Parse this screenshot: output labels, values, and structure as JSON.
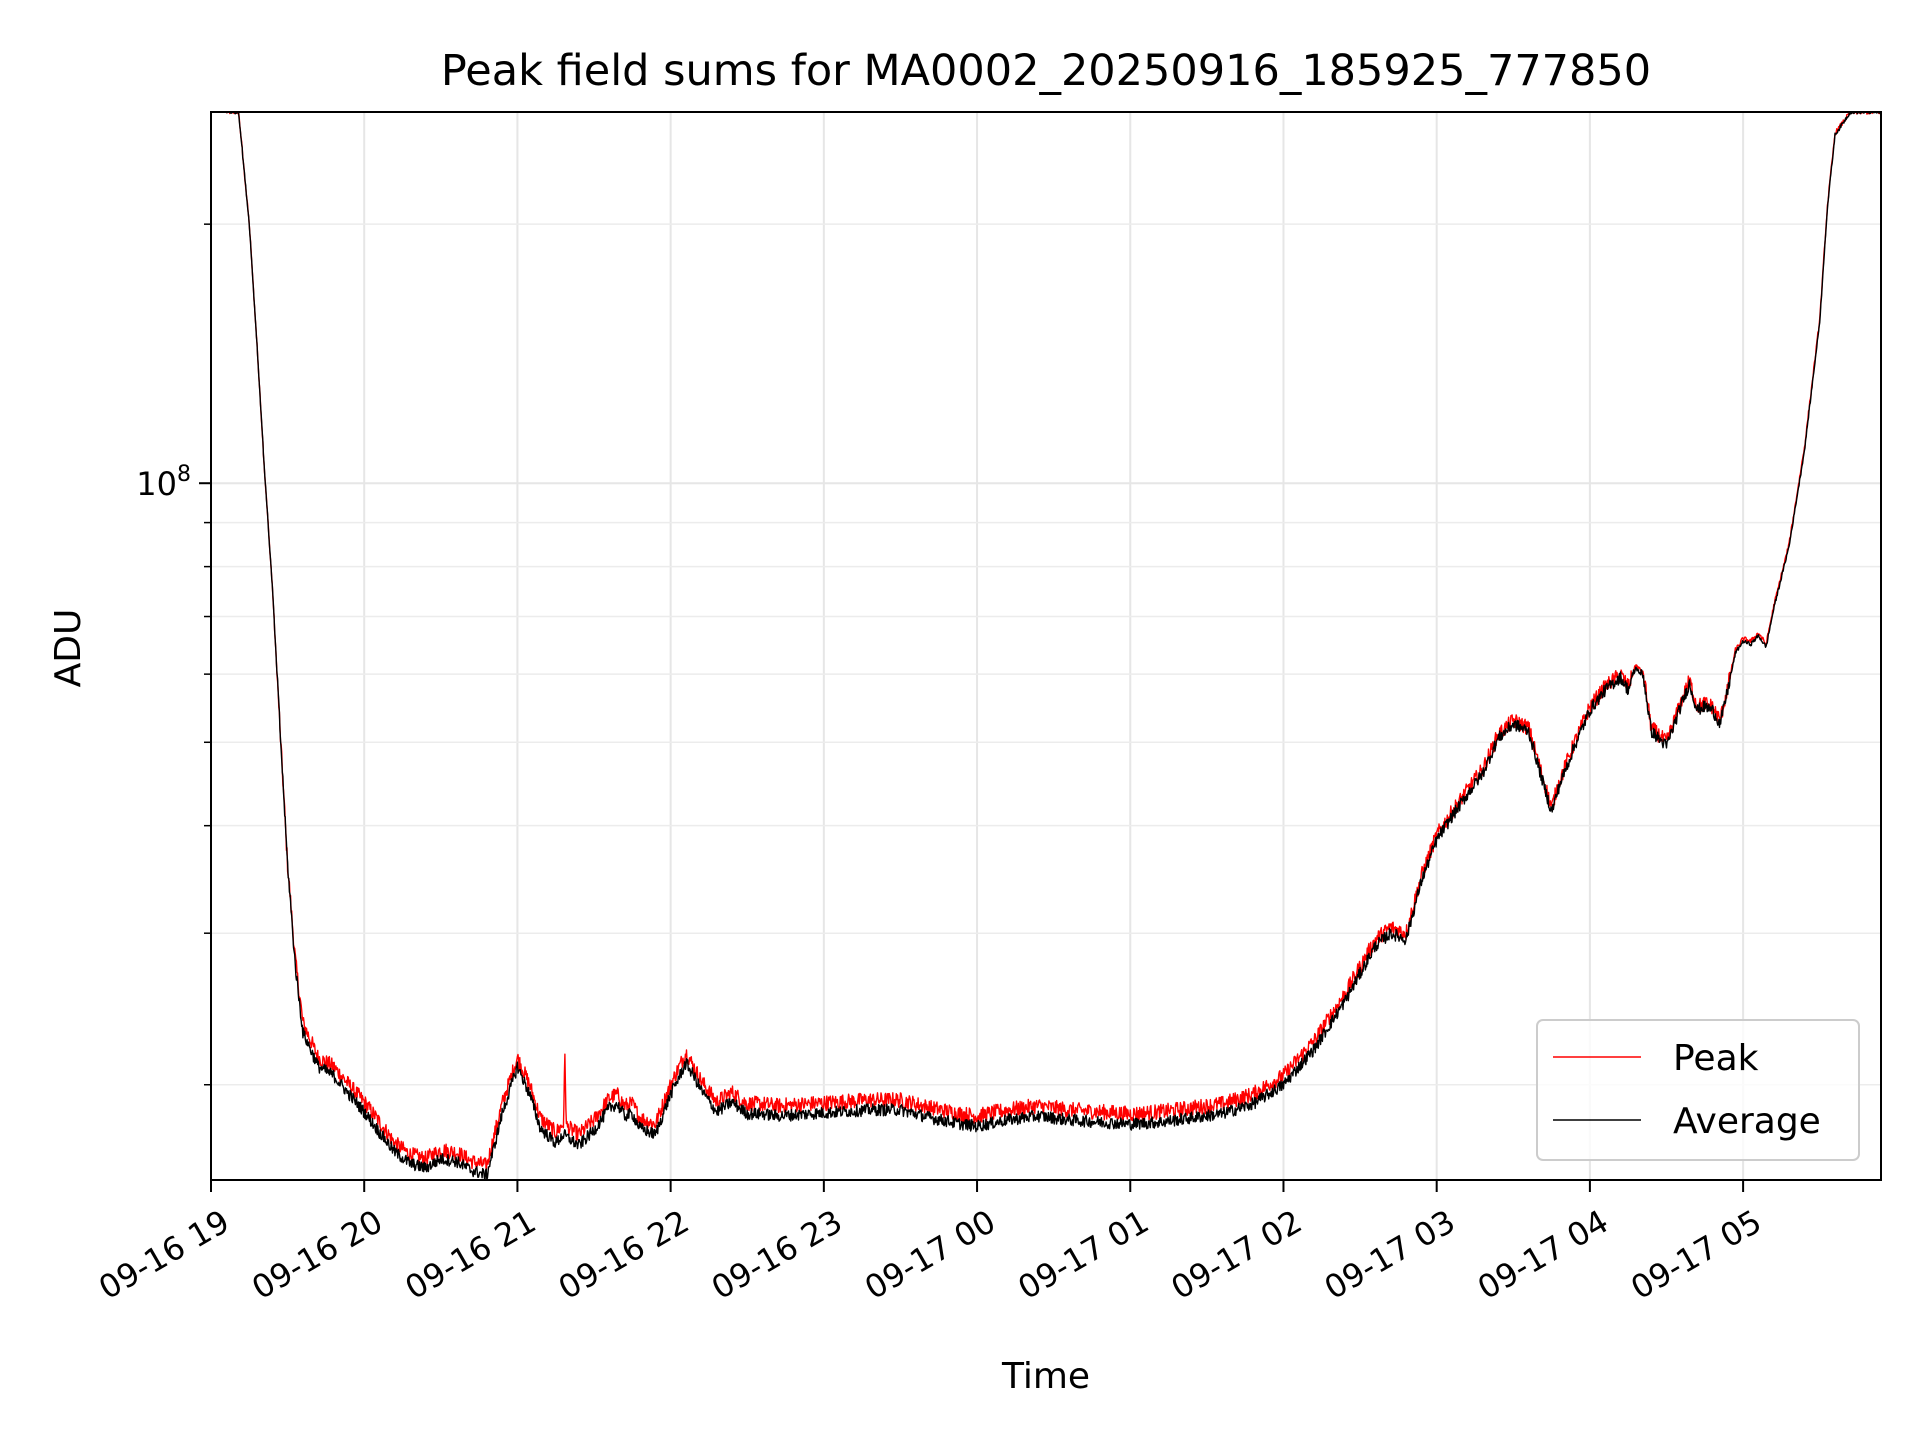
{
  "chart_data": {
    "type": "line",
    "title": "Peak field sums for MA0002_20250916_185925_777850",
    "xlabel": "Time",
    "ylabel": "ADU",
    "yscale": "log",
    "ylim": [
      15500000,
      270000000
    ],
    "xlim_hours": [
      0,
      10.9
    ],
    "x_start": "09-16 19:00",
    "x_unit": "hours",
    "grid": true,
    "legend_position": "lower right",
    "x_ticks": [
      {
        "hour": 0,
        "label": "09-16 19"
      },
      {
        "hour": 1,
        "label": "09-16 20"
      },
      {
        "hour": 2,
        "label": "09-16 21"
      },
      {
        "hour": 3,
        "label": "09-16 22"
      },
      {
        "hour": 4,
        "label": "09-16 23"
      },
      {
        "hour": 5,
        "label": "09-17 00"
      },
      {
        "hour": 6,
        "label": "09-17 01"
      },
      {
        "hour": 7,
        "label": "09-17 02"
      },
      {
        "hour": 8,
        "label": "09-17 03"
      },
      {
        "hour": 9,
        "label": "09-17 04"
      },
      {
        "hour": 10,
        "label": "09-17 05"
      }
    ],
    "y_major_ticks": [
      {
        "value": 100000000,
        "base": "10",
        "exp": "8"
      }
    ],
    "y_minor_ticks": [
      20000000,
      30000000,
      40000000,
      50000000,
      60000000,
      70000000,
      80000000,
      90000000,
      200000000
    ],
    "series": [
      {
        "name": "Peak",
        "color": "#ff0000",
        "x": [
          0.1,
          0.18,
          0.25,
          0.3,
          0.35,
          0.4,
          0.45,
          0.5,
          0.55,
          0.6,
          0.7,
          0.8,
          0.9,
          1.0,
          1.1,
          1.2,
          1.3,
          1.4,
          1.5,
          1.6,
          1.7,
          1.8,
          1.85,
          1.9,
          2.0,
          2.08,
          2.15,
          2.25,
          2.3,
          2.31,
          2.32,
          2.4,
          2.5,
          2.6,
          2.65,
          2.7,
          2.75,
          2.8,
          2.9,
          3.0,
          3.1,
          3.15,
          3.2,
          3.3,
          3.4,
          3.5,
          3.55,
          3.6,
          3.7,
          3.9,
          4.1,
          4.3,
          4.5,
          4.7,
          4.9,
          5.0,
          5.2,
          5.4,
          5.6,
          5.8,
          6.0,
          6.2,
          6.4,
          6.6,
          6.8,
          7.0,
          7.2,
          7.4,
          7.6,
          7.7,
          7.8,
          7.9,
          8.0,
          8.1,
          8.2,
          8.3,
          8.4,
          8.5,
          8.6,
          8.7,
          8.75,
          8.8,
          8.9,
          9.0,
          9.1,
          9.2,
          9.25,
          9.3,
          9.35,
          9.4,
          9.5,
          9.6,
          9.65,
          9.7,
          9.75,
          9.8,
          9.85,
          9.9,
          9.95,
          10.0,
          10.05,
          10.1,
          10.15,
          10.2,
          10.3,
          10.4,
          10.5,
          10.55,
          10.6,
          10.7,
          10.9
        ],
        "values": [
          270000000,
          270000000,
          200000000,
          145000000,
          103000000,
          76000000,
          52000000,
          36000000,
          28000000,
          23600000,
          21500000,
          21000000,
          20000000,
          19100000,
          18100000,
          17100000,
          16600000,
          16400000,
          16800000,
          16700000,
          16300000,
          16100000,
          17500000,
          19000000,
          21500000,
          20000000,
          18300000,
          17600000,
          18000000,
          21500000,
          17900000,
          17500000,
          18200000,
          19300000,
          19500000,
          18900000,
          19000000,
          18300000,
          18000000,
          20000000,
          21800000,
          21000000,
          20200000,
          19100000,
          19600000,
          19000000,
          19000000,
          19000000,
          18900000,
          19000000,
          19100000,
          19200000,
          19200000,
          18800000,
          18500000,
          18400000,
          18700000,
          18900000,
          18700000,
          18600000,
          18500000,
          18600000,
          18800000,
          19000000,
          19500000,
          20500000,
          22500000,
          25500000,
          29500000,
          30500000,
          30000000,
          35000000,
          39000000,
          41500000,
          44000000,
          46500000,
          51000000,
          53000000,
          52000000,
          45000000,
          42000000,
          45000000,
          50000000,
          55000000,
          58000000,
          60000000,
          58000000,
          61500000,
          60000000,
          52000000,
          50000000,
          56000000,
          59000000,
          55000000,
          55500000,
          55000000,
          53000000,
          58000000,
          64000000,
          66000000,
          65500000,
          67000000,
          65000000,
          72000000,
          85000000,
          110000000,
          155000000,
          210000000,
          255000000,
          270000000,
          270000000
        ]
      },
      {
        "name": "Average",
        "color": "#000000",
        "x": [
          0.1,
          0.18,
          0.25,
          0.3,
          0.35,
          0.4,
          0.45,
          0.5,
          0.55,
          0.6,
          0.7,
          0.8,
          0.9,
          1.0,
          1.1,
          1.2,
          1.3,
          1.4,
          1.5,
          1.6,
          1.7,
          1.8,
          1.85,
          1.9,
          2.0,
          2.08,
          2.15,
          2.25,
          2.3,
          2.4,
          2.5,
          2.6,
          2.65,
          2.7,
          2.75,
          2.8,
          2.9,
          3.0,
          3.1,
          3.15,
          3.2,
          3.3,
          3.4,
          3.5,
          3.55,
          3.6,
          3.7,
          3.9,
          4.1,
          4.3,
          4.5,
          4.7,
          4.9,
          5.0,
          5.2,
          5.4,
          5.6,
          5.8,
          6.0,
          6.2,
          6.4,
          6.6,
          6.8,
          7.0,
          7.2,
          7.4,
          7.6,
          7.7,
          7.8,
          7.9,
          8.0,
          8.1,
          8.2,
          8.3,
          8.4,
          8.5,
          8.6,
          8.7,
          8.75,
          8.8,
          8.9,
          9.0,
          9.1,
          9.2,
          9.25,
          9.3,
          9.35,
          9.4,
          9.5,
          9.6,
          9.65,
          9.7,
          9.75,
          9.8,
          9.85,
          9.9,
          9.95,
          10.0,
          10.05,
          10.1,
          10.15,
          10.2,
          10.3,
          10.4,
          10.5,
          10.55,
          10.6,
          10.7,
          10.9
        ],
        "values": [
          270000000,
          270000000,
          200000000,
          145000000,
          103000000,
          76000000,
          52000000,
          36000000,
          27500000,
          23000000,
          21000000,
          20500000,
          19500000,
          18600000,
          17600000,
          16700000,
          16200000,
          16000000,
          16400000,
          16300000,
          15900000,
          15700000,
          17000000,
          18500000,
          21000000,
          19500000,
          17800000,
          17100000,
          17500000,
          17000000,
          17700000,
          18800000,
          19000000,
          18400000,
          18500000,
          17800000,
          17500000,
          19500000,
          21200000,
          20500000,
          19700000,
          18600000,
          19100000,
          18500000,
          18500000,
          18500000,
          18400000,
          18500000,
          18600000,
          18700000,
          18700000,
          18300000,
          18000000,
          17900000,
          18200000,
          18400000,
          18200000,
          18100000,
          18000000,
          18100000,
          18300000,
          18500000,
          19000000,
          20000000,
          22000000,
          25000000,
          29000000,
          30000000,
          29500000,
          34500000,
          38500000,
          41000000,
          43500000,
          46000000,
          50500000,
          52500000,
          51500000,
          44500000,
          41500000,
          44500000,
          49500000,
          54500000,
          57500000,
          59500000,
          57500000,
          61000000,
          59500000,
          51500000,
          49500000,
          55500000,
          58500000,
          54500000,
          55000000,
          54500000,
          52500000,
          57500000,
          63500000,
          65500000,
          65000000,
          66500000,
          64500000,
          71500000,
          84500000,
          109000000,
          154000000,
          209000000,
          254000000,
          270000000,
          270000000
        ]
      }
    ]
  }
}
